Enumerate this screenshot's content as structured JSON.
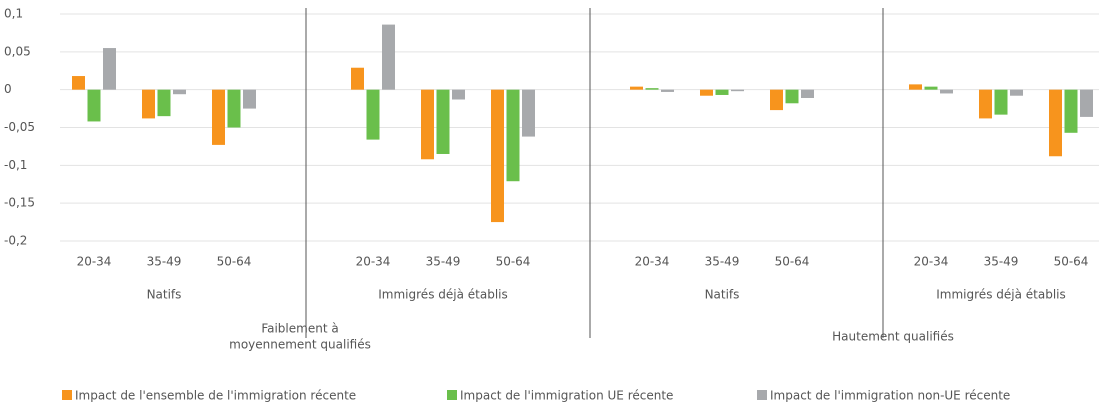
{
  "chart_data": {
    "type": "bar",
    "categories": [
      "20-34",
      "35-49",
      "50-64",
      "20-34",
      "35-49",
      "50-64",
      "20-34",
      "35-49",
      "50-64",
      "20-34",
      "35-49",
      "50-64"
    ],
    "groups": [
      "Natifs",
      "Immigrés déjà établis",
      "Natifs",
      "Immigrés déjà établis"
    ],
    "supergroups": [
      [
        "Faiblement à",
        "moyennement qualifiés"
      ],
      [
        "Hautement qualifiés"
      ]
    ],
    "series": [
      {
        "name": "Impact de l'ensemble de l'immigration récente",
        "color": "#f7941d",
        "values": [
          0.018,
          -0.038,
          -0.073,
          0.029,
          -0.092,
          -0.175,
          0.004,
          -0.008,
          -0.027,
          0.007,
          -0.038,
          -0.088
        ]
      },
      {
        "name": "Impact de l'immigration UE récente",
        "color": "#6abf4b",
        "values": [
          -0.042,
          -0.035,
          -0.05,
          -0.066,
          -0.085,
          -0.121,
          0.002,
          -0.007,
          -0.018,
          0.004,
          -0.033,
          -0.057
        ]
      },
      {
        "name": "Impact de l'immigration non-UE récente",
        "color": "#a7a9ac",
        "values": [
          0.055,
          -0.006,
          -0.025,
          0.086,
          -0.013,
          -0.062,
          -0.003,
          -0.002,
          -0.011,
          -0.005,
          -0.008,
          -0.036
        ]
      }
    ],
    "ylim": [
      -0.2,
      0.1
    ],
    "yticks": [
      {
        "value": 0.1,
        "label": "0,1"
      },
      {
        "value": 0.05,
        "label": "0,05"
      },
      0,
      {
        "value": -0.05,
        "label": "-0,05"
      },
      {
        "value": -0.1,
        "label": "-0,1"
      },
      {
        "value": -0.15,
        "label": "-0,15"
      },
      {
        "value": -0.2,
        "label": "-0,2"
      }
    ],
    "grid": true
  }
}
